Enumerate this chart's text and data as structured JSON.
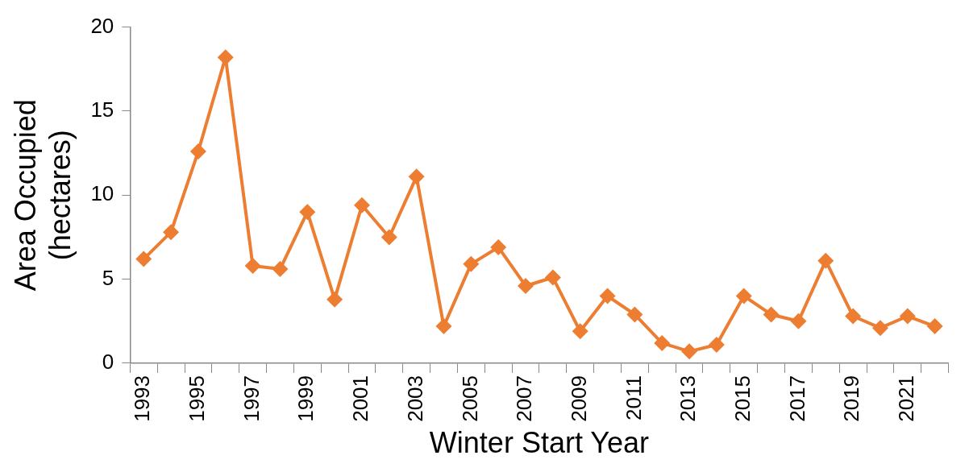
{
  "chart_data": {
    "type": "line",
    "xlabel": "Winter Start Year",
    "ylabel": "Area Occupied\n(hectares)",
    "categories": [
      "1993",
      null,
      "1995",
      null,
      "1997",
      null,
      "1999",
      null,
      "2001",
      null,
      "2003",
      null,
      "2005",
      null,
      "2007",
      null,
      "2009",
      null,
      "2011",
      null,
      "2013",
      null,
      "2015",
      null,
      "2017",
      null,
      "2019",
      null,
      "2021",
      null
    ],
    "series": [
      {
        "color": "#ed7d31",
        "values": [
          6.2,
          7.8,
          12.6,
          18.2,
          5.8,
          5.6,
          9.0,
          3.8,
          9.4,
          7.5,
          11.1,
          2.2,
          5.9,
          6.9,
          4.6,
          5.1,
          1.9,
          4.0,
          2.9,
          1.2,
          0.7,
          1.1,
          4.0,
          2.9,
          2.5,
          6.1,
          2.8,
          2.1,
          2.8,
          2.2
        ]
      }
    ],
    "ylim": [
      0,
      20
    ],
    "yticks": [
      0,
      5,
      10,
      15,
      20
    ],
    "grid": false,
    "legend": false,
    "marker": "diamond",
    "line_style": "solid"
  }
}
